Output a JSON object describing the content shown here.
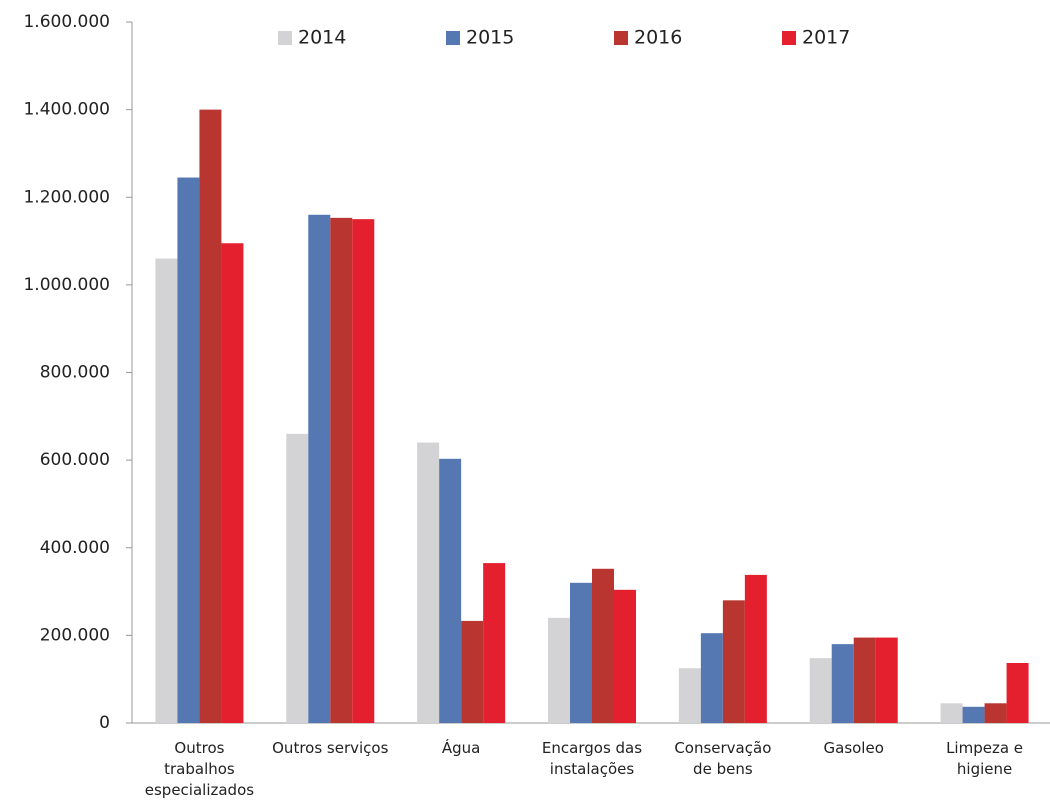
{
  "chart_data": {
    "type": "bar",
    "categories": [
      "Outros trabalhos especializados",
      "Outros serviços",
      "Água",
      "Encargos das instalações",
      "Conservação de bens",
      "Gasoleo",
      "Limpeza e higiene"
    ],
    "series": [
      {
        "name": "2014",
        "color": "#d3d3d6",
        "values": [
          1060000,
          660000,
          640000,
          240000,
          125000,
          148000,
          45000
        ]
      },
      {
        "name": "2015",
        "color": "#5578b3",
        "values": [
          1245000,
          1160000,
          603000,
          320000,
          205000,
          180000,
          37000
        ]
      },
      {
        "name": "2016",
        "color": "#b83530",
        "values": [
          1400000,
          1153000,
          233000,
          352000,
          280000,
          195000,
          45000
        ]
      },
      {
        "name": "2017",
        "color": "#e5202e",
        "values": [
          1095000,
          1150000,
          365000,
          304000,
          338000,
          195000,
          137000
        ]
      }
    ],
    "ylim": [
      0,
      1600000
    ],
    "yticks": [
      0,
      {
        "value": 200000,
        "label": "200.000"
      },
      {
        "value": 400000,
        "label": "400.000"
      },
      {
        "value": 600000,
        "label": "600.000"
      },
      {
        "value": 800000,
        "label": "800.000"
      },
      {
        "value": 1000000,
        "label": "1.000.000"
      },
      {
        "value": 1200000,
        "label": "1.200.000"
      },
      {
        "value": 1400000,
        "label": "1.400.000"
      },
      {
        "value": 1600000,
        "label": "1.600.000"
      }
    ],
    "legend": "top"
  }
}
